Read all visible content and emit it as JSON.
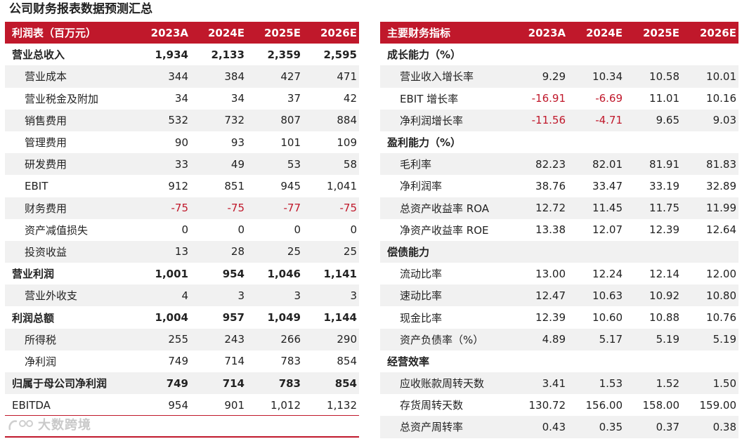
{
  "title": "公司财务报表数据预测汇总",
  "watermark_text": "大数跨境",
  "left_table": {
    "header": [
      "利润表（百万元）",
      "2023A",
      "2024E",
      "2025E",
      "2026E"
    ],
    "rows": [
      {
        "label": "营业总收入",
        "values": [
          "1,934",
          "2,133",
          "2,359",
          "2,595"
        ],
        "style": "bold"
      },
      {
        "label": "营业成本",
        "values": [
          "344",
          "384",
          "427",
          "471"
        ],
        "style": "sub shade"
      },
      {
        "label": "营业税金及附加",
        "values": [
          "34",
          "34",
          "37",
          "42"
        ],
        "style": "sub"
      },
      {
        "label": "销售费用",
        "values": [
          "532",
          "732",
          "807",
          "884"
        ],
        "style": "sub shade"
      },
      {
        "label": "管理费用",
        "values": [
          "90",
          "93",
          "101",
          "109"
        ],
        "style": "sub"
      },
      {
        "label": "研发费用",
        "values": [
          "33",
          "49",
          "53",
          "58"
        ],
        "style": "sub shade"
      },
      {
        "label": "EBIT",
        "values": [
          "912",
          "851",
          "945",
          "1,041"
        ],
        "style": "sub"
      },
      {
        "label": "财务费用",
        "values": [
          "-75",
          "-75",
          "-77",
          "-75"
        ],
        "style": "sub shade",
        "negative": [
          true,
          true,
          true,
          true
        ]
      },
      {
        "label": "资产减值损失",
        "values": [
          "0",
          "0",
          "0",
          "0"
        ],
        "style": "sub"
      },
      {
        "label": "投资收益",
        "values": [
          "13",
          "28",
          "25",
          "25"
        ],
        "style": "sub shade"
      },
      {
        "label": "营业利润",
        "values": [
          "1,001",
          "954",
          "1,046",
          "1,141"
        ],
        "style": "bold"
      },
      {
        "label": "营业外收支",
        "values": [
          "4",
          "3",
          "3",
          "3"
        ],
        "style": "sub shade"
      },
      {
        "label": "利润总额",
        "values": [
          "1,004",
          "957",
          "1,049",
          "1,144"
        ],
        "style": "bold"
      },
      {
        "label": "所得税",
        "values": [
          "255",
          "243",
          "266",
          "290"
        ],
        "style": "sub shade"
      },
      {
        "label": "净利润",
        "values": [
          "749",
          "714",
          "783",
          "854"
        ],
        "style": "sub"
      },
      {
        "label": "归属于母公司净利润",
        "values": [
          "749",
          "714",
          "783",
          "854"
        ],
        "style": "bold shade"
      },
      {
        "label": "EBITDA",
        "values": [
          "954",
          "901",
          "1,012",
          "1,132"
        ],
        "style": ""
      }
    ]
  },
  "right_table": {
    "header": [
      "主要财务指标",
      "2023A",
      "2024E",
      "2025E",
      "2026E"
    ],
    "rows": [
      {
        "label": "成长能力（%）",
        "values": [
          "",
          "",
          "",
          ""
        ],
        "style": "section"
      },
      {
        "label": "营业收入增长率",
        "values": [
          "9.29",
          "10.34",
          "10.58",
          "10.01"
        ],
        "style": "sub shade"
      },
      {
        "label": "EBIT 增长率",
        "values": [
          "-16.91",
          "-6.69",
          "11.01",
          "10.16"
        ],
        "style": "sub",
        "negative": [
          true,
          true,
          false,
          false
        ]
      },
      {
        "label": "净利润增长率",
        "values": [
          "-11.56",
          "-4.71",
          "9.65",
          "9.03"
        ],
        "style": "sub shade",
        "negative": [
          true,
          true,
          false,
          false
        ]
      },
      {
        "label": "盈利能力（%）",
        "values": [
          "",
          "",
          "",
          ""
        ],
        "style": "section"
      },
      {
        "label": "毛利率",
        "values": [
          "82.23",
          "82.01",
          "81.91",
          "81.83"
        ],
        "style": "sub shade"
      },
      {
        "label": "净利润率",
        "values": [
          "38.76",
          "33.47",
          "33.19",
          "32.89"
        ],
        "style": "sub"
      },
      {
        "label": "总资产收益率 ROA",
        "values": [
          "12.72",
          "11.45",
          "11.75",
          "11.99"
        ],
        "style": "sub shade"
      },
      {
        "label": "净资产收益率 ROE",
        "values": [
          "13.38",
          "12.07",
          "12.39",
          "12.64"
        ],
        "style": "sub"
      },
      {
        "label": "偿债能力",
        "values": [
          "",
          "",
          "",
          ""
        ],
        "style": "section shade"
      },
      {
        "label": "流动比率",
        "values": [
          "13.00",
          "12.24",
          "12.14",
          "12.00"
        ],
        "style": "sub"
      },
      {
        "label": "速动比率",
        "values": [
          "12.47",
          "10.63",
          "10.92",
          "10.80"
        ],
        "style": "sub shade"
      },
      {
        "label": "现金比率",
        "values": [
          "12.39",
          "10.60",
          "10.88",
          "10.76"
        ],
        "style": "sub"
      },
      {
        "label": "资产负债率（%）",
        "values": [
          "4.89",
          "5.17",
          "5.19",
          "5.19"
        ],
        "style": "sub shade"
      },
      {
        "label": "经营效率",
        "values": [
          "",
          "",
          "",
          ""
        ],
        "style": "section"
      },
      {
        "label": "应收账款周转天数",
        "values": [
          "3.41",
          "1.53",
          "1.52",
          "1.50"
        ],
        "style": "sub shade"
      },
      {
        "label": "存货周转天数",
        "values": [
          "130.72",
          "156.00",
          "158.00",
          "159.00"
        ],
        "style": "sub"
      },
      {
        "label": "总资产周转率",
        "values": [
          "0.43",
          "0.35",
          "0.37",
          "0.38"
        ],
        "style": "sub shade"
      }
    ]
  },
  "colors": {
    "accent": "#c0182b",
    "shade": "#f1f1f1",
    "negative": "#c0182b"
  }
}
